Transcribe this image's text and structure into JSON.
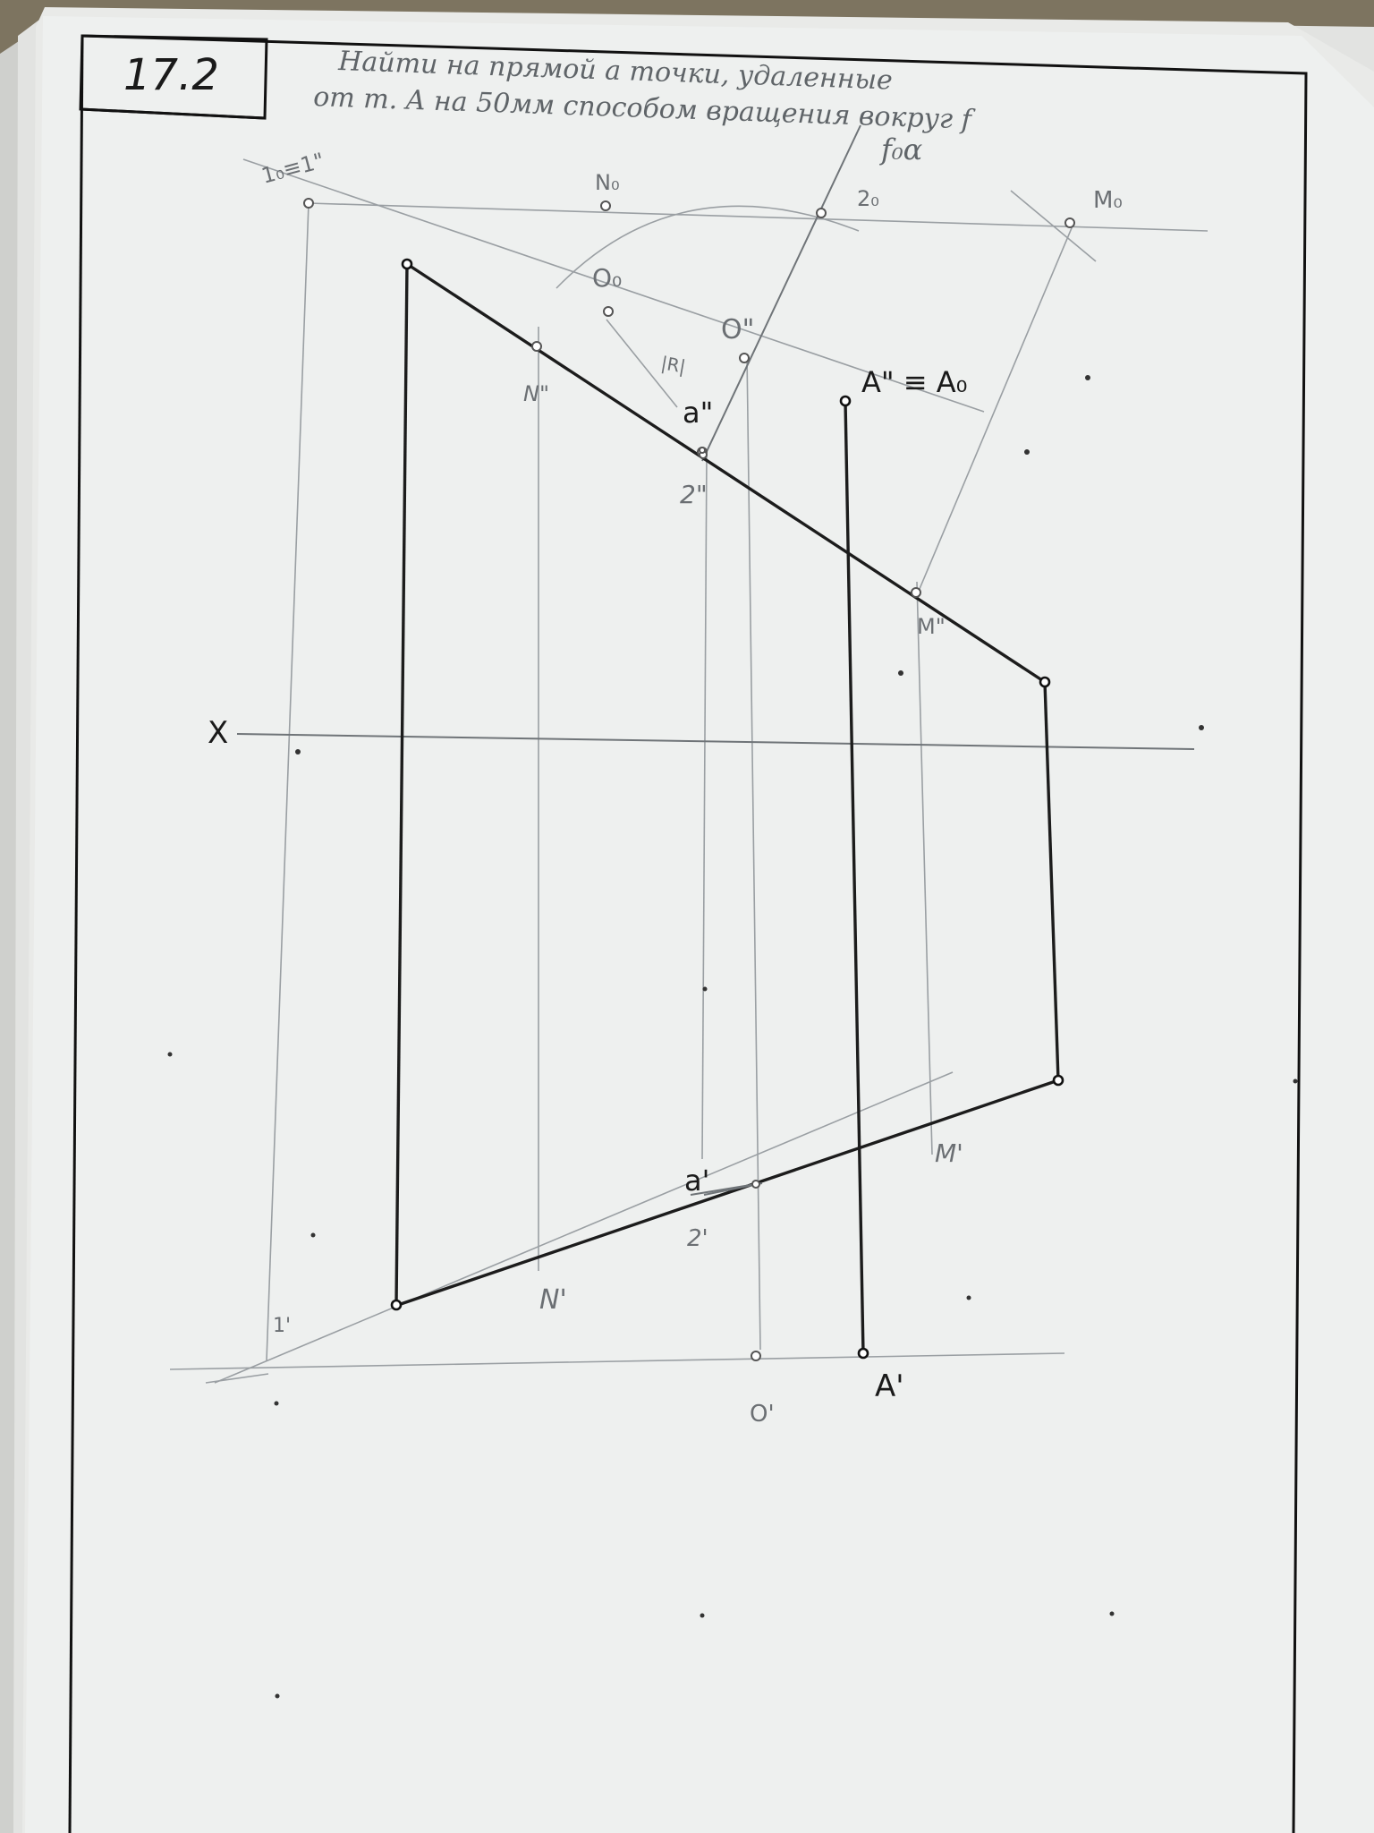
{
  "sheet": {
    "problem_number": "17.2",
    "task_line_1": "Найти на прямой a точки, удаленные",
    "task_line_2": "от т. A на 50мм способом вращения вокруг f"
  },
  "labels": {
    "axis_x": "X",
    "axis_f": "f₀α",
    "p1_top": "1₀≡1\"",
    "N0": "N₀",
    "p20": "2₀",
    "M0": "M₀",
    "O0": "O₀",
    "O_front": "O\"",
    "R": "|R|",
    "N_front": "N\"",
    "a_front": "a\"",
    "A_front": "A\" ≡ A₀",
    "p2_front": "2\"",
    "M_front": "M\"",
    "a_top": "a'",
    "p2_top": "2'",
    "N_top": "N'",
    "M_top": "M'",
    "p1_bottom": "1'",
    "A_top": "A'",
    "O_top": "O'"
  }
}
